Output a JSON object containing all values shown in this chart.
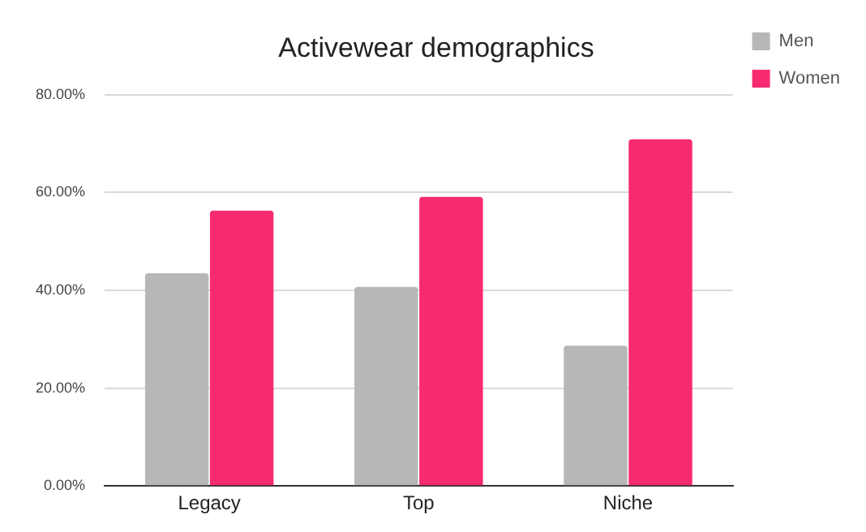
{
  "chart_data": {
    "type": "bar",
    "title": "Activewear demographics",
    "categories": [
      "Legacy",
      "Top",
      "Niche"
    ],
    "series": [
      {
        "name": "Men",
        "color": "#b7b7b7",
        "values": [
          43.5,
          40.7,
          28.7
        ]
      },
      {
        "name": "Women",
        "color": "#f72a72",
        "values": [
          56.3,
          59.1,
          70.9
        ]
      }
    ],
    "ylim": [
      0,
      80
    ],
    "yticks": [
      {
        "value": 0,
        "label": "0.00%"
      },
      {
        "value": 20,
        "label": "20.00%"
      },
      {
        "value": 40,
        "label": "40.00%"
      },
      {
        "value": 60,
        "label": "60.00%"
      },
      {
        "value": 80,
        "label": "80.00%"
      }
    ],
    "grid": "y",
    "legend": "top right"
  }
}
